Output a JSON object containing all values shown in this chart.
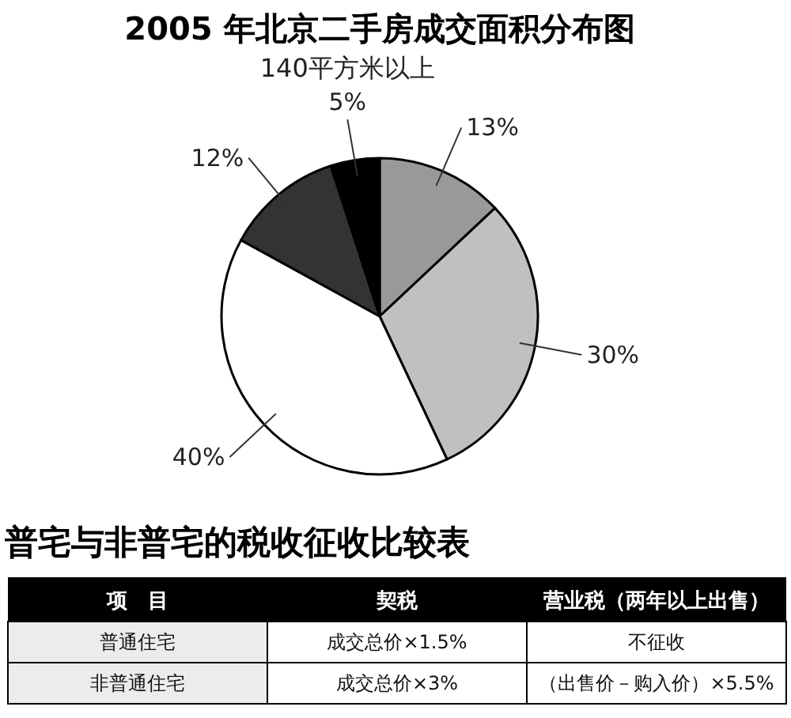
{
  "chart_data": [
    {
      "type": "pie",
      "title": "2005 年北京二手房成交面积分布图",
      "categories": [
        null,
        null,
        null,
        null,
        "140平方米以上"
      ],
      "values": [
        13,
        30,
        40,
        12,
        5
      ],
      "colors": [
        "#999999",
        "#c0c0c0",
        "#ffffff",
        "#333333",
        "#000000"
      ],
      "value_labels": [
        "13%",
        "30%",
        "40%",
        "12%",
        "5%"
      ]
    },
    {
      "type": "other",
      "title": "普宅与非普宅的税收征收比较表",
      "categories": [
        "项　目",
        "契税",
        "营业税（两年以上出售）"
      ],
      "y_categories": [
        "普通住宅",
        "非普通住宅"
      ],
      "cell_labels": [
        [
          "成交总价×1.5%",
          "不征收"
        ],
        [
          "成交总价×3%",
          "（出售价－购入价）×5.5%"
        ]
      ]
    }
  ]
}
